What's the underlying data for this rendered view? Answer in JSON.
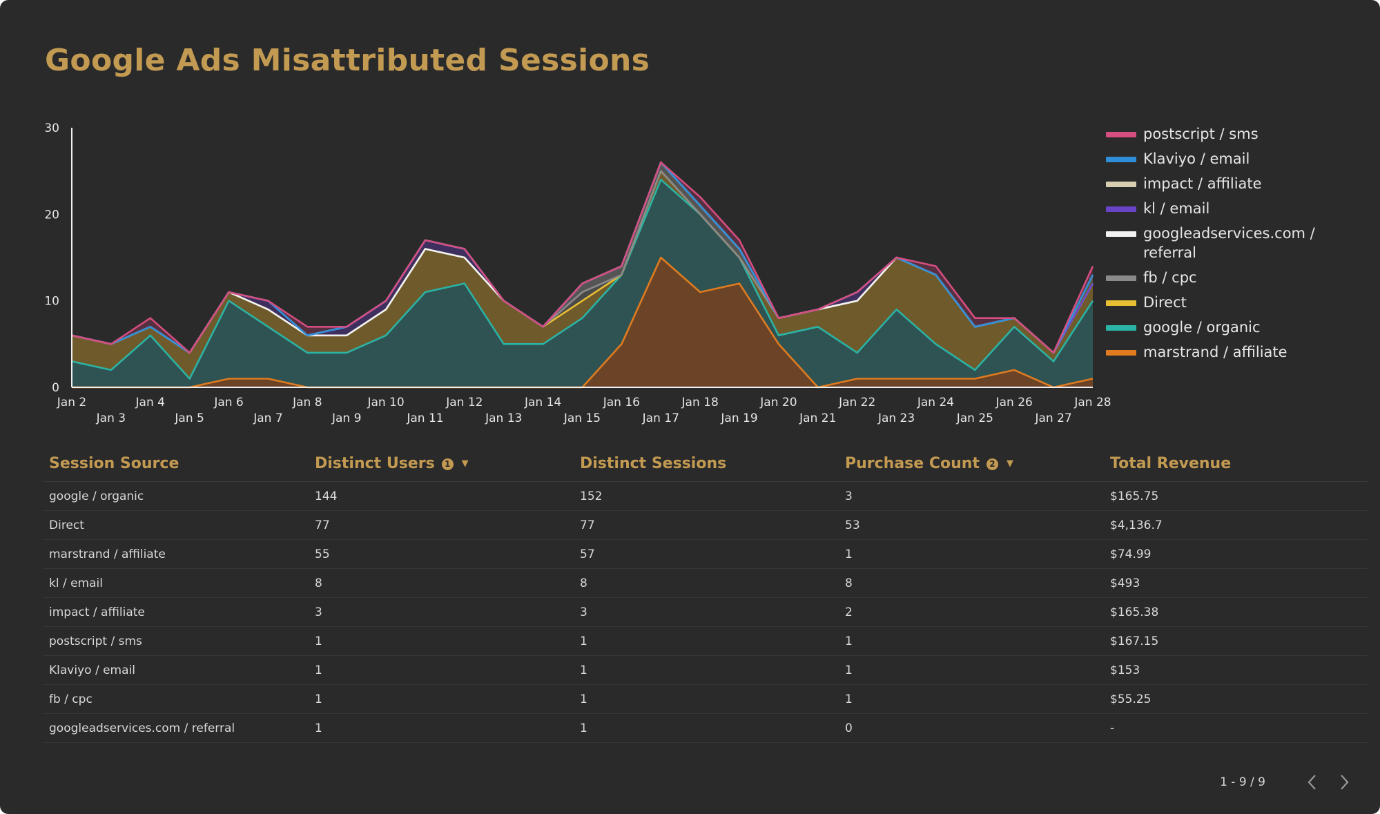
{
  "title": "Google Ads Misattributed Sessions",
  "colors": {
    "title": "#c39a52",
    "background": "#2a2a2a",
    "axis": "#f0f0f0"
  },
  "chart_data": {
    "type": "area",
    "stacked": true,
    "x": [
      "Jan 2",
      "Jan 3",
      "Jan 4",
      "Jan 5",
      "Jan 6",
      "Jan 7",
      "Jan 8",
      "Jan 9",
      "Jan 10",
      "Jan 11",
      "Jan 12",
      "Jan 13",
      "Jan 14",
      "Jan 15",
      "Jan 16",
      "Jan 17",
      "Jan 18",
      "Jan 19",
      "Jan 20",
      "Jan 21",
      "Jan 22",
      "Jan 23",
      "Jan 24",
      "Jan 25",
      "Jan 26",
      "Jan 27",
      "Jan 28"
    ],
    "ylim": [
      0,
      30
    ],
    "yticks": [
      0,
      10,
      20,
      30
    ],
    "grid": false,
    "legend_position": "right",
    "series": [
      {
        "name": "marstrand / affiliate",
        "color": "#e07b1f",
        "fill": "#6b4428",
        "values": [
          0,
          0,
          0,
          0,
          1,
          1,
          0,
          0,
          0,
          0,
          0,
          0,
          0,
          0,
          5,
          15,
          11,
          12,
          5,
          0,
          1,
          1,
          1,
          1,
          2,
          0,
          1
        ]
      },
      {
        "name": "google / organic",
        "color": "#2bb3a5",
        "fill": "#2f5352",
        "values": [
          3,
          2,
          6,
          1,
          9,
          6,
          4,
          4,
          6,
          11,
          12,
          5,
          5,
          8,
          8,
          9,
          9,
          3,
          1,
          7,
          3,
          8,
          4,
          1,
          5,
          3,
          9
        ]
      },
      {
        "name": "Direct",
        "color": "#e8bf33",
        "fill": "#6e5a2a",
        "values": [
          3,
          3,
          1,
          3,
          1,
          2,
          2,
          2,
          3,
          5,
          3,
          5,
          2,
          2,
          0,
          1,
          0,
          0,
          2,
          2,
          6,
          6,
          8,
          5,
          1,
          1,
          2
        ]
      },
      {
        "name": "fb / cpc",
        "color": "#8a8a8a",
        "fill": "#4a4a4a",
        "values": [
          0,
          0,
          0,
          0,
          0,
          0,
          0,
          0,
          0,
          0,
          0,
          0,
          0,
          1,
          0,
          0,
          0,
          0,
          0,
          0,
          0,
          0,
          0,
          0,
          0,
          0,
          0
        ]
      },
      {
        "name": "googleadservices.com / referral",
        "color": "#f2f2f2",
        "fill": "#555555",
        "values": [
          0,
          0,
          0,
          0,
          0,
          0,
          0,
          0,
          0,
          0,
          0,
          0,
          0,
          1,
          1,
          1,
          1,
          1,
          0,
          0,
          0,
          0,
          0,
          0,
          0,
          0,
          0
        ]
      },
      {
        "name": "kl / email",
        "color": "#6a44c7",
        "fill": "#3e2f5e",
        "values": [
          0,
          0,
          0,
          0,
          0,
          1,
          0,
          1,
          1,
          1,
          1,
          0,
          0,
          0,
          0,
          0,
          0,
          0,
          0,
          0,
          1,
          0,
          0,
          0,
          0,
          0,
          0
        ]
      },
      {
        "name": "impact / affiliate",
        "color": "#d8cfb0",
        "fill": "#5a5548",
        "values": [
          0,
          0,
          0,
          0,
          0,
          0,
          0,
          0,
          0,
          0,
          0,
          0,
          0,
          0,
          0,
          0,
          0,
          0,
          0,
          0,
          0,
          0,
          0,
          0,
          0,
          0,
          1
        ]
      },
      {
        "name": "Klaviyo / email",
        "color": "#2e8fd8",
        "fill": "#2b4256",
        "values": [
          0,
          0,
          0,
          0,
          0,
          0,
          0,
          0,
          0,
          0,
          0,
          0,
          0,
          0,
          0,
          0,
          0,
          0,
          0,
          0,
          0,
          0,
          0,
          0,
          0,
          0,
          0
        ]
      },
      {
        "name": "postscript / sms",
        "color": "#d64d80",
        "fill": "#563040",
        "values": [
          0,
          0,
          1,
          0,
          0,
          0,
          1,
          0,
          0,
          0,
          0,
          0,
          0,
          0,
          0,
          0,
          1,
          1,
          0,
          0,
          0,
          0,
          1,
          1,
          0,
          0,
          1
        ]
      }
    ]
  },
  "legend": [
    {
      "label": "postscript / sms",
      "color": "#d64d80"
    },
    {
      "label": "Klaviyo / email",
      "color": "#2e8fd8"
    },
    {
      "label": "impact / affiliate",
      "color": "#d8cfb0"
    },
    {
      "label": "kl / email",
      "color": "#6a44c7"
    },
    {
      "label": "googleadservices.com / referral",
      "color": "#f2f2f2"
    },
    {
      "label": "fb / cpc",
      "color": "#8a8a8a"
    },
    {
      "label": "Direct",
      "color": "#e8bf33"
    },
    {
      "label": "google / organic",
      "color": "#2bb3a5"
    },
    {
      "label": "marstrand / affiliate",
      "color": "#e07b1f"
    }
  ],
  "table": {
    "headers": {
      "source": "Session Source",
      "users": "Distinct Users",
      "users_badge": "1",
      "sessions": "Distinct Sessions",
      "purchases": "Purchase Count",
      "purchases_badge": "2",
      "revenue": "Total Revenue"
    },
    "rows": [
      {
        "source": "google / organic",
        "users": "144",
        "sessions": "152",
        "purchases": "3",
        "revenue": "$165.75"
      },
      {
        "source": "Direct",
        "users": "77",
        "sessions": "77",
        "purchases": "53",
        "revenue": "$4,136.7"
      },
      {
        "source": "marstrand / affiliate",
        "users": "55",
        "sessions": "57",
        "purchases": "1",
        "revenue": "$74.99"
      },
      {
        "source": "kl / email",
        "users": "8",
        "sessions": "8",
        "purchases": "8",
        "revenue": "$493"
      },
      {
        "source": "impact / affiliate",
        "users": "3",
        "sessions": "3",
        "purchases": "2",
        "revenue": "$165.38"
      },
      {
        "source": "postscript / sms",
        "users": "1",
        "sessions": "1",
        "purchases": "1",
        "revenue": "$167.15"
      },
      {
        "source": "Klaviyo / email",
        "users": "1",
        "sessions": "1",
        "purchases": "1",
        "revenue": "$153"
      },
      {
        "source": "fb / cpc",
        "users": "1",
        "sessions": "1",
        "purchases": "1",
        "revenue": "$55.25"
      },
      {
        "source": "googleadservices.com / referral",
        "users": "1",
        "sessions": "1",
        "purchases": "0",
        "revenue": "-"
      }
    ]
  },
  "pagination": {
    "range": "1 - 9 / 9"
  }
}
